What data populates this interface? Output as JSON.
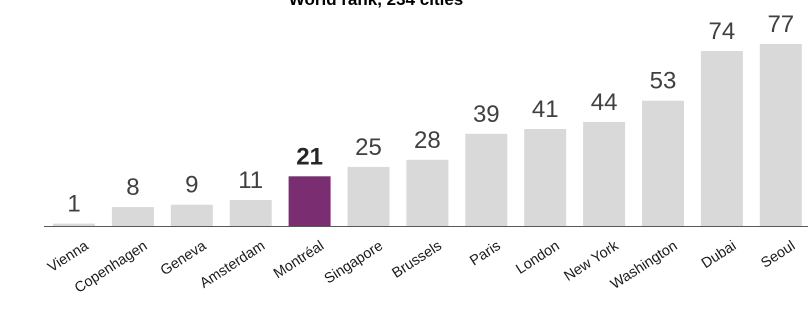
{
  "chart_data": {
    "type": "bar",
    "title": "World rank, 234 cities",
    "categories": [
      "Vienna",
      "Copenhagen",
      "Geneva",
      "Amsterdam",
      "Montréal",
      "Singapore",
      "Brussels",
      "Paris",
      "London",
      "New York",
      "Washington",
      "Dubai",
      "Seoul"
    ],
    "values": [
      1,
      8,
      9,
      11,
      21,
      25,
      28,
      39,
      41,
      44,
      53,
      74,
      77
    ],
    "highlight": "Montréal",
    "colors": {
      "bar": "#d9d9d9",
      "highlight": "#7b2d72",
      "axis": "#595959"
    },
    "ylim": [
      0,
      80
    ],
    "grid": false,
    "legend": "none"
  }
}
